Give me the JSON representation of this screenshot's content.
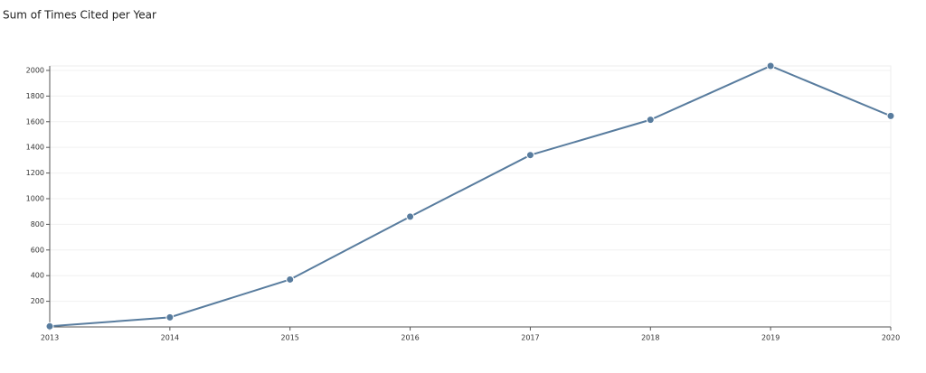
{
  "chart_data": {
    "type": "line",
    "title": "Sum of Times Cited per Year",
    "x": [
      2013,
      2014,
      2015,
      2016,
      2017,
      2018,
      2019,
      2020
    ],
    "series": [
      {
        "color": "#587c9e",
        "values": [
          5,
          75,
          370,
          860,
          1340,
          1615,
          2035,
          1645
        ]
      }
    ],
    "xlim": [
      2013,
      2020
    ],
    "xticks": [
      2013,
      2014,
      2015,
      2016,
      2017,
      2018,
      2019,
      2020
    ],
    "ylim": [
      0,
      2035
    ],
    "yticks": [
      200,
      400,
      600,
      800,
      1000,
      1200,
      1400,
      1600,
      1800,
      2000
    ],
    "grid": true
  }
}
